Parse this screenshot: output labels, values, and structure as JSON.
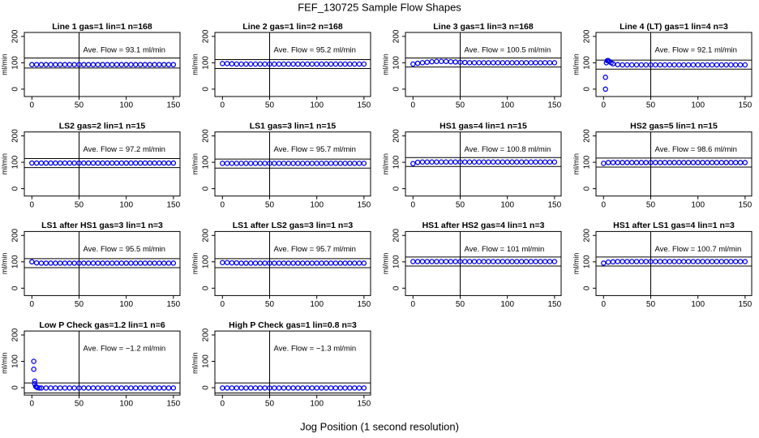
{
  "title": "FEF_130725  Sample Flow Shapes",
  "xlabel": "Jog Position (1 second resolution)",
  "chart_data": [
    {
      "type": "scatter",
      "title": "Line 1 gas=1 lin=1 n=168",
      "ylabel": "ml/min",
      "annotation": "Ave. Flow =  93.1  ml/min",
      "color": "#0000ee",
      "xlim": [
        -8,
        157
      ],
      "ylim": [
        -28,
        215
      ],
      "xticks": [
        0,
        50,
        100,
        150
      ],
      "yticks": [
        0,
        100,
        200
      ],
      "vline": 50,
      "hlines": [
        80,
        118
      ],
      "x": [
        0,
        5,
        10,
        15,
        20,
        25,
        30,
        35,
        40,
        45,
        50,
        55,
        60,
        65,
        70,
        75,
        80,
        85,
        90,
        95,
        100,
        105,
        110,
        115,
        120,
        125,
        130,
        135,
        140,
        145,
        150
      ],
      "values": [
        93,
        93,
        93,
        93,
        93,
        93,
        93,
        93,
        93,
        93,
        93,
        93,
        93,
        93,
        93,
        93,
        93,
        93,
        93,
        93,
        93,
        93,
        93,
        93,
        93,
        93,
        93,
        93,
        93,
        93,
        93
      ]
    },
    {
      "type": "scatter",
      "title": "Line 2 gas=1 lin=2 n=168",
      "ylabel": "ml/min",
      "annotation": "Ave. Flow =  95.2  ml/min",
      "color": "#0000ee",
      "xlim": [
        -8,
        157
      ],
      "ylim": [
        -28,
        215
      ],
      "xticks": [
        0,
        50,
        100,
        150
      ],
      "yticks": [
        0,
        100,
        200
      ],
      "vline": 50,
      "hlines": [
        78,
        112
      ],
      "x": [
        0,
        5,
        10,
        15,
        20,
        25,
        30,
        35,
        40,
        45,
        50,
        55,
        60,
        65,
        70,
        75,
        80,
        85,
        90,
        95,
        100,
        105,
        110,
        115,
        120,
        125,
        130,
        135,
        140,
        145,
        150
      ],
      "values": [
        97,
        97,
        96,
        95,
        95,
        95,
        95,
        95,
        95,
        95,
        95,
        95,
        95,
        95,
        95,
        95,
        95,
        95,
        95,
        95,
        95,
        95,
        95,
        95,
        95,
        95,
        95,
        95,
        95,
        95,
        95
      ]
    },
    {
      "type": "scatter",
      "title": "Line 3 gas=1 lin=3 n=168",
      "ylabel": "ml/min",
      "annotation": "Ave. Flow =  100.5  ml/min",
      "color": "#0000ee",
      "xlim": [
        -8,
        157
      ],
      "ylim": [
        -28,
        215
      ],
      "xticks": [
        0,
        50,
        100,
        150
      ],
      "yticks": [
        0,
        100,
        200
      ],
      "vline": 50,
      "hlines": [
        84,
        118
      ],
      "x": [
        0,
        5,
        10,
        15,
        20,
        25,
        30,
        35,
        40,
        45,
        50,
        55,
        60,
        65,
        70,
        75,
        80,
        85,
        90,
        95,
        100,
        105,
        110,
        115,
        120,
        125,
        130,
        135,
        140,
        145,
        150
      ],
      "values": [
        95,
        98,
        100,
        102,
        104,
        105,
        105,
        105,
        104,
        103,
        102,
        101,
        100,
        100,
        100,
        100,
        100,
        100,
        100,
        100,
        100,
        100,
        100,
        100,
        100,
        100,
        100,
        100,
        100,
        100,
        100
      ]
    },
    {
      "type": "scatter",
      "title": "Line 4 (LT) gas=1 lin=4 n=3",
      "ylabel": "ml/min",
      "annotation": "Ave. Flow =  92.1  ml/min",
      "color": "#0000ee",
      "xlim": [
        -8,
        157
      ],
      "ylim": [
        -28,
        215
      ],
      "xticks": [
        0,
        50,
        100,
        150
      ],
      "yticks": [
        0,
        100,
        200
      ],
      "vline": 50,
      "hlines": [
        76,
        110
      ],
      "x": [
        2,
        2,
        3,
        4,
        5,
        6,
        8,
        10,
        15,
        20,
        25,
        30,
        35,
        40,
        45,
        50,
        55,
        60,
        65,
        70,
        75,
        80,
        85,
        90,
        95,
        100,
        105,
        110,
        115,
        120,
        125,
        130,
        135,
        140,
        145,
        150
      ],
      "values": [
        0,
        45,
        100,
        108,
        108,
        105,
        100,
        96,
        93,
        92,
        92,
        92,
        92,
        92,
        92,
        92,
        92,
        92,
        92,
        92,
        92,
        92,
        92,
        92,
        92,
        92,
        92,
        92,
        92,
        92,
        92,
        92,
        92,
        92,
        92,
        92
      ]
    },
    {
      "type": "scatter",
      "title": "LS2 gas=2 lin=1 n=15",
      "ylabel": "ml/min",
      "annotation": "Ave. Flow =  97.2  ml/min",
      "color": "#0000ee",
      "xlim": [
        -8,
        157
      ],
      "ylim": [
        -28,
        215
      ],
      "xticks": [
        0,
        50,
        100,
        150
      ],
      "yticks": [
        0,
        100,
        200
      ],
      "vline": 50,
      "hlines": [
        80,
        114
      ],
      "x": [
        0,
        5,
        10,
        15,
        20,
        25,
        30,
        35,
        40,
        45,
        50,
        55,
        60,
        65,
        70,
        75,
        80,
        85,
        90,
        95,
        100,
        105,
        110,
        115,
        120,
        125,
        130,
        135,
        140,
        145,
        150
      ],
      "values": [
        97,
        97,
        97,
        97,
        97,
        97,
        97,
        97,
        97,
        97,
        97,
        97,
        97,
        97,
        97,
        97,
        97,
        97,
        97,
        97,
        97,
        97,
        97,
        97,
        97,
        97,
        97,
        97,
        97,
        97,
        97
      ]
    },
    {
      "type": "scatter",
      "title": "LS1 gas=3 lin=1 n=15",
      "ylabel": "ml/min",
      "annotation": "Ave. Flow =  95.7  ml/min",
      "color": "#0000ee",
      "xlim": [
        -8,
        157
      ],
      "ylim": [
        -28,
        215
      ],
      "xticks": [
        0,
        50,
        100,
        150
      ],
      "yticks": [
        0,
        100,
        200
      ],
      "vline": 50,
      "hlines": [
        78,
        112
      ],
      "x": [
        0,
        5,
        10,
        15,
        20,
        25,
        30,
        35,
        40,
        45,
        50,
        55,
        60,
        65,
        70,
        75,
        80,
        85,
        90,
        95,
        100,
        105,
        110,
        115,
        120,
        125,
        130,
        135,
        140,
        145,
        150
      ],
      "values": [
        96,
        96,
        96,
        96,
        96,
        96,
        96,
        96,
        96,
        96,
        96,
        96,
        96,
        96,
        96,
        96,
        96,
        96,
        96,
        96,
        96,
        96,
        96,
        96,
        96,
        96,
        96,
        96,
        96,
        96,
        96
      ]
    },
    {
      "type": "scatter",
      "title": "HS1 gas=4 lin=1 n=15",
      "ylabel": "ml/min",
      "annotation": "Ave. Flow =  100.8  ml/min",
      "color": "#0000ee",
      "xlim": [
        -8,
        157
      ],
      "ylim": [
        -28,
        215
      ],
      "xticks": [
        0,
        50,
        100,
        150
      ],
      "yticks": [
        0,
        100,
        200
      ],
      "vline": 50,
      "hlines": [
        84,
        118
      ],
      "x": [
        0,
        5,
        10,
        15,
        20,
        25,
        30,
        35,
        40,
        45,
        50,
        55,
        60,
        65,
        70,
        75,
        80,
        85,
        90,
        95,
        100,
        105,
        110,
        115,
        120,
        125,
        130,
        135,
        140,
        145,
        150
      ],
      "values": [
        95,
        100,
        101,
        101,
        101,
        101,
        101,
        101,
        101,
        101,
        101,
        101,
        101,
        101,
        101,
        101,
        101,
        101,
        101,
        101,
        101,
        101,
        101,
        101,
        101,
        101,
        101,
        101,
        101,
        101,
        101
      ]
    },
    {
      "type": "scatter",
      "title": "HS2 gas=5 lin=1 n=15",
      "ylabel": "ml/min",
      "annotation": "Ave. Flow =  98.6  ml/min",
      "color": "#0000ee",
      "xlim": [
        -8,
        157
      ],
      "ylim": [
        -28,
        215
      ],
      "xticks": [
        0,
        50,
        100,
        150
      ],
      "yticks": [
        0,
        100,
        200
      ],
      "vline": 50,
      "hlines": [
        82,
        116
      ],
      "x": [
        0,
        5,
        10,
        15,
        20,
        25,
        30,
        35,
        40,
        45,
        50,
        55,
        60,
        65,
        70,
        75,
        80,
        85,
        90,
        95,
        100,
        105,
        110,
        115,
        120,
        125,
        130,
        135,
        140,
        145,
        150
      ],
      "values": [
        96,
        99,
        99,
        99,
        99,
        99,
        99,
        99,
        99,
        99,
        99,
        99,
        99,
        99,
        99,
        99,
        99,
        99,
        99,
        99,
        99,
        99,
        99,
        99,
        99,
        99,
        99,
        99,
        99,
        99,
        99
      ]
    },
    {
      "type": "scatter",
      "title": "LS1 after HS1 gas=3 lin=1 n=3",
      "ylabel": "ml/min",
      "annotation": "Ave. Flow =  95.5  ml/min",
      "color": "#0000ee",
      "xlim": [
        -8,
        157
      ],
      "ylim": [
        -28,
        215
      ],
      "xticks": [
        0,
        50,
        100,
        150
      ],
      "yticks": [
        0,
        100,
        200
      ],
      "vline": 50,
      "hlines": [
        78,
        112
      ],
      "x": [
        0,
        5,
        10,
        15,
        20,
        25,
        30,
        35,
        40,
        45,
        50,
        55,
        60,
        65,
        70,
        75,
        80,
        85,
        90,
        95,
        100,
        105,
        110,
        115,
        120,
        125,
        130,
        135,
        140,
        145,
        150
      ],
      "values": [
        100,
        96,
        95,
        95,
        95,
        95,
        95,
        95,
        95,
        95,
        95,
        95,
        95,
        95,
        95,
        95,
        95,
        95,
        95,
        95,
        95,
        95,
        95,
        95,
        95,
        95,
        95,
        95,
        95,
        95,
        95
      ]
    },
    {
      "type": "scatter",
      "title": "LS1 after LS2 gas=3 lin=1 n=3",
      "ylabel": "ml/min",
      "annotation": "Ave. Flow =  95.7  ml/min",
      "color": "#0000ee",
      "xlim": [
        -8,
        157
      ],
      "ylim": [
        -28,
        215
      ],
      "xticks": [
        0,
        50,
        100,
        150
      ],
      "yticks": [
        0,
        100,
        200
      ],
      "vline": 50,
      "hlines": [
        78,
        112
      ],
      "x": [
        0,
        5,
        10,
        15,
        20,
        25,
        30,
        35,
        40,
        45,
        50,
        55,
        60,
        65,
        70,
        75,
        80,
        85,
        90,
        95,
        100,
        105,
        110,
        115,
        120,
        125,
        130,
        135,
        140,
        145,
        150
      ],
      "values": [
        97,
        97,
        96,
        96,
        95,
        95,
        95,
        95,
        95,
        95,
        95,
        95,
        95,
        95,
        95,
        95,
        95,
        95,
        95,
        95,
        95,
        95,
        95,
        95,
        95,
        95,
        95,
        95,
        95,
        95,
        95
      ]
    },
    {
      "type": "scatter",
      "title": "HS1 after HS2 gas=4 lin=1 n=3",
      "ylabel": "ml/min",
      "annotation": "Ave. Flow =  101  ml/min",
      "color": "#0000ee",
      "xlim": [
        -8,
        157
      ],
      "ylim": [
        -28,
        215
      ],
      "xticks": [
        0,
        50,
        100,
        150
      ],
      "yticks": [
        0,
        100,
        200
      ],
      "vline": 50,
      "hlines": [
        84,
        118
      ],
      "x": [
        0,
        5,
        10,
        15,
        20,
        25,
        30,
        35,
        40,
        45,
        50,
        55,
        60,
        65,
        70,
        75,
        80,
        85,
        90,
        95,
        100,
        105,
        110,
        115,
        120,
        125,
        130,
        135,
        140,
        145,
        150
      ],
      "values": [
        101,
        101,
        101,
        101,
        101,
        101,
        101,
        101,
        101,
        101,
        101,
        101,
        101,
        101,
        101,
        101,
        101,
        101,
        101,
        101,
        101,
        101,
        101,
        101,
        101,
        101,
        101,
        101,
        101,
        101,
        101
      ]
    },
    {
      "type": "scatter",
      "title": "HS1 after LS1 gas=4 lin=1 n=3",
      "ylabel": "ml/min",
      "annotation": "Ave. Flow =  100.7  ml/min",
      "color": "#0000ee",
      "xlim": [
        -8,
        157
      ],
      "ylim": [
        -28,
        215
      ],
      "xticks": [
        0,
        50,
        100,
        150
      ],
      "yticks": [
        0,
        100,
        200
      ],
      "vline": 50,
      "hlines": [
        84,
        118
      ],
      "x": [
        0,
        5,
        10,
        15,
        20,
        25,
        30,
        35,
        40,
        45,
        50,
        55,
        60,
        65,
        70,
        75,
        80,
        85,
        90,
        95,
        100,
        105,
        110,
        115,
        120,
        125,
        130,
        135,
        140,
        145,
        150
      ],
      "values": [
        95,
        99,
        100,
        101,
        101,
        101,
        101,
        101,
        101,
        101,
        101,
        101,
        101,
        101,
        101,
        101,
        101,
        101,
        101,
        101,
        101,
        101,
        101,
        101,
        101,
        101,
        101,
        101,
        101,
        101,
        101
      ]
    },
    {
      "type": "scatter",
      "title": "Low P Check gas=1.2 lin=1 n=6",
      "ylabel": "ml/min",
      "annotation": "Ave. Flow =  −1.2  ml/min",
      "color": "#0000ee",
      "xlim": [
        -8,
        157
      ],
      "ylim": [
        -28,
        215
      ],
      "xticks": [
        0,
        50,
        100,
        150
      ],
      "yticks": [
        0,
        100,
        200
      ],
      "vline": 50,
      "hlines": [
        -20,
        18
      ],
      "x": [
        2,
        2,
        3,
        3,
        4,
        5,
        6,
        8,
        10,
        15,
        20,
        25,
        30,
        35,
        40,
        45,
        50,
        55,
        60,
        65,
        70,
        75,
        80,
        85,
        90,
        95,
        100,
        105,
        110,
        115,
        120,
        125,
        130,
        135,
        140,
        145,
        150
      ],
      "values": [
        100,
        70,
        25,
        15,
        5,
        2,
        0,
        -1,
        -1,
        -1,
        -1,
        -1,
        -1,
        -1,
        -1,
        -1,
        -1,
        -1,
        -1,
        -1,
        -1,
        -1,
        -1,
        -1,
        -1,
        -1,
        -1,
        -1,
        -1,
        -1,
        -1,
        -1,
        -1,
        -1,
        -1,
        -1,
        -1
      ]
    },
    {
      "type": "scatter",
      "title": "High P Check gas=1 lin=0.8 n=3",
      "ylabel": "ml/min",
      "annotation": "Ave. Flow =  −1.3  ml/min",
      "color": "#0000ee",
      "xlim": [
        -8,
        157
      ],
      "ylim": [
        -28,
        215
      ],
      "xticks": [
        0,
        50,
        100,
        150
      ],
      "yticks": [
        0,
        100,
        200
      ],
      "vline": 50,
      "hlines": [
        -20,
        18
      ],
      "x": [
        0,
        5,
        10,
        15,
        20,
        25,
        30,
        35,
        40,
        45,
        50,
        55,
        60,
        65,
        70,
        75,
        80,
        85,
        90,
        95,
        100,
        105,
        110,
        115,
        120,
        125,
        130,
        135,
        140,
        145,
        150
      ],
      "values": [
        -1,
        -1,
        -1,
        -1,
        -1,
        -1,
        -1,
        -1,
        -1,
        -1,
        -1,
        -1,
        -1,
        -1,
        -1,
        -1,
        -1,
        -1,
        -1,
        -1,
        -1,
        -1,
        -1,
        -1,
        -1,
        -1,
        -1,
        -1,
        -1,
        -1,
        -1
      ]
    }
  ]
}
